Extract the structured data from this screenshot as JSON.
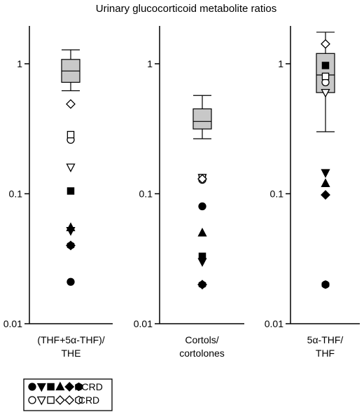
{
  "chart_data": {
    "type": "box",
    "title": "Urinary glucocorticoid metabolite ratios",
    "yscale": "log",
    "ylim": [
      0.01,
      2
    ],
    "yticks": [
      {
        "value": 0.01,
        "label": "0.01"
      },
      {
        "value": 0.1,
        "label": "0.1"
      },
      {
        "value": 1,
        "label": "1"
      }
    ],
    "panels": [
      {
        "label_lines": [
          "(THF+5α-THF)/",
          "THE"
        ],
        "box": {
          "whisker_low": 0.62,
          "q1": 0.72,
          "median": 0.88,
          "q3": 1.08,
          "whisker_high": 1.28
        },
        "acrd": [
          {
            "marker": "circle",
            "value": 0.021
          },
          {
            "marker": "triangle-down",
            "value": 0.052
          },
          {
            "marker": "square",
            "value": 0.105
          },
          {
            "marker": "triangle-up",
            "value": 0.055
          },
          {
            "marker": "diamond",
            "value": 0.04
          },
          {
            "marker": "hexagon",
            "value": 0.04
          }
        ],
        "crd": [
          {
            "marker": "circle",
            "value": 0.26
          },
          {
            "marker": "triangle-down",
            "value": 0.16
          },
          {
            "marker": "square",
            "value": 0.285
          },
          {
            "marker": "diamond",
            "value": 0.49
          }
        ]
      },
      {
        "label_lines": [
          "Cortols/",
          "cortolones"
        ],
        "box": {
          "whisker_low": 0.265,
          "q1": 0.315,
          "median": 0.36,
          "q3": 0.45,
          "whisker_high": 0.57
        },
        "acrd": [
          {
            "marker": "circle",
            "value": 0.08
          },
          {
            "marker": "triangle-down",
            "value": 0.03
          },
          {
            "marker": "square",
            "value": 0.033
          },
          {
            "marker": "triangle-up",
            "value": 0.05
          },
          {
            "marker": "diamond",
            "value": 0.02
          },
          {
            "marker": "hexagon",
            "value": 0.02
          }
        ],
        "crd": [
          {
            "marker": "circle",
            "value": 0.128
          },
          {
            "marker": "triangle-down",
            "value": 0.133
          },
          {
            "marker": "square",
            "value": 0.133
          },
          {
            "marker": "diamond",
            "value": 0.13
          }
        ]
      },
      {
        "label_lines": [
          "5α-THF/",
          "THF"
        ],
        "box": {
          "whisker_low": 0.3,
          "q1": 0.6,
          "median": 0.82,
          "q3": 1.2,
          "whisker_high": 1.75
        },
        "acrd": [
          {
            "marker": "circle",
            "value": 0.02
          },
          {
            "marker": "triangle-down",
            "value": 0.145
          },
          {
            "marker": "square",
            "value": 0.97
          },
          {
            "marker": "triangle-up",
            "value": 0.12
          },
          {
            "marker": "diamond",
            "value": 0.098
          },
          {
            "marker": "hexagon",
            "value": 0.02
          }
        ],
        "crd": [
          {
            "marker": "circle",
            "value": 0.72
          },
          {
            "marker": "triangle-down",
            "value": 0.6
          },
          {
            "marker": "square",
            "value": 0.8
          },
          {
            "marker": "diamond",
            "value": 1.42
          }
        ]
      }
    ],
    "legend": {
      "position": "bottom-left",
      "entries": [
        {
          "label": "ACRD",
          "filled": true,
          "markers": [
            "circle",
            "triangle-down",
            "square",
            "triangle-up",
            "diamond",
            "hexagon"
          ]
        },
        {
          "label": "CRD",
          "filled": false,
          "markers": [
            "circle",
            "triangle-down",
            "square",
            "diamond",
            "diamond",
            "hexagon"
          ]
        }
      ]
    },
    "colors": {
      "box_fill": "#c8c8c8",
      "line": "#000000",
      "background": "#ffffff"
    }
  }
}
